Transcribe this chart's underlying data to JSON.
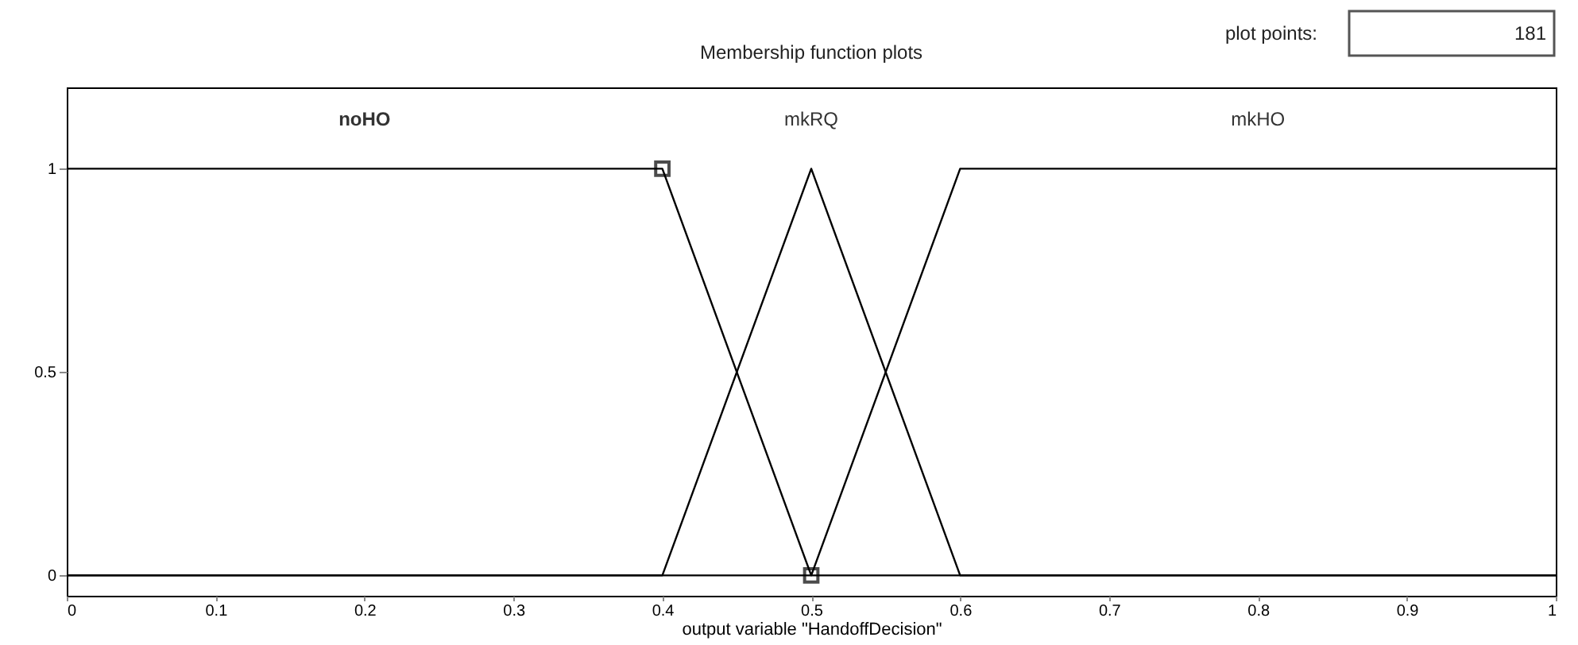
{
  "chart_data": {
    "type": "line",
    "title": "Membership function plots",
    "xlabel": "output variable \"HandoffDecision\"",
    "series": [
      {
        "name": "noHO",
        "color": "#000000",
        "x": [
          0,
          0.4,
          0.5,
          1
        ],
        "values": [
          1,
          1,
          0,
          0
        ]
      },
      {
        "name": "mkRQ",
        "color": "#000000",
        "x": [
          0,
          0.4,
          0.5,
          0.6,
          1
        ],
        "values": [
          0,
          0,
          1,
          0,
          0
        ]
      },
      {
        "name": "mkHO",
        "color": "#000000",
        "x": [
          0,
          0.5,
          0.6,
          1
        ],
        "values": [
          0,
          0,
          1,
          1
        ]
      },
      {
        "type": "scatter",
        "color": "#000000",
        "marker": "square",
        "x": [
          0.4,
          0.5
        ],
        "values": [
          1,
          0
        ]
      }
    ],
    "xlim": [
      0,
      1
    ],
    "xticks": [
      0,
      0.1,
      0.2,
      0.3,
      0.4,
      0.5,
      0.6,
      0.7,
      0.8,
      0.9,
      1
    ],
    "ylim": [
      -0.05,
      1.2
    ],
    "yticks": [
      0,
      0.5,
      1
    ],
    "grid": false,
    "line_style": "solid",
    "annotations": [
      "plot points:",
      "181"
    ]
  }
}
